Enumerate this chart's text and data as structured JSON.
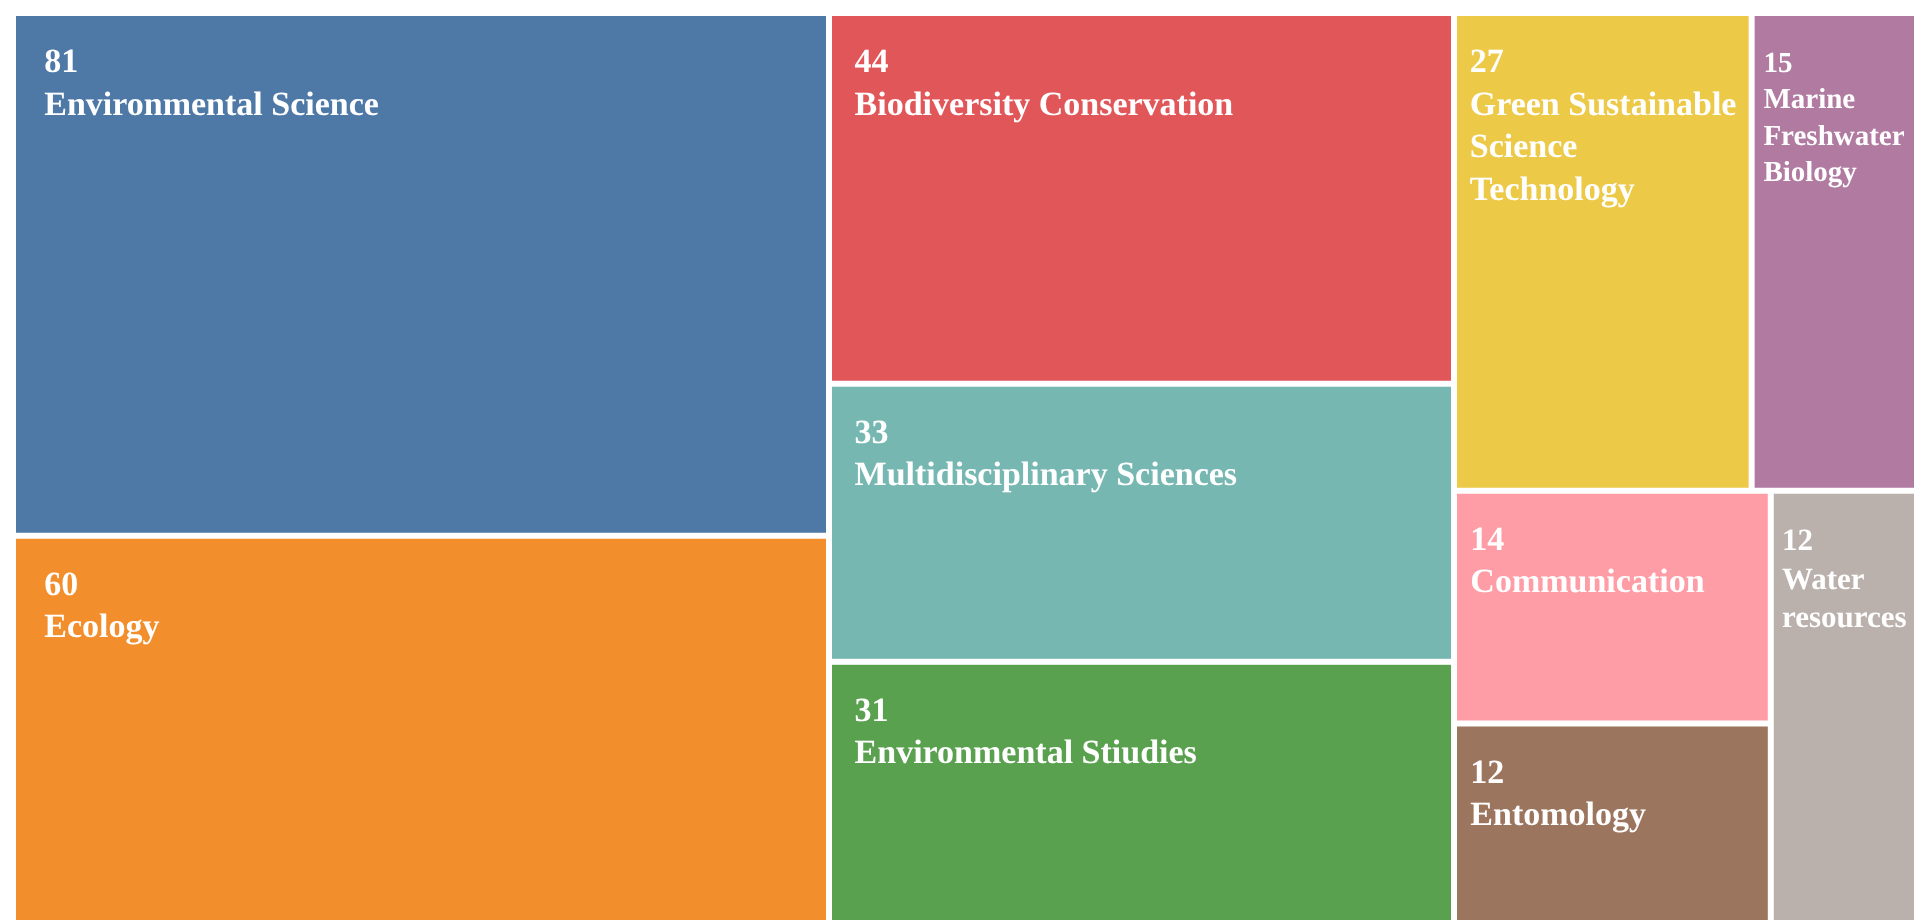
{
  "chart_data": {
    "type": "other",
    "categories": [
      "Environmental Science",
      "Ecology",
      "Biodiversity Conservation",
      "Multidisciplinary Sciences",
      "Environmental Stiudies",
      "Green Sustainable Science Technology",
      "Marine Freshwater Biology",
      "Communication",
      "Entomology",
      "Water resources"
    ],
    "values": [
      81,
      60,
      44,
      33,
      31,
      27,
      15,
      14,
      12,
      12
    ],
    "colors": [
      "#4e79a7",
      "#f28e2b",
      "#e15759",
      "#76b7b2",
      "#59a14f",
      "#edc948",
      "#b07aa1",
      "#ff9da7",
      "#9c755f",
      "#bab0ac"
    ],
    "data_labels": true
  }
}
